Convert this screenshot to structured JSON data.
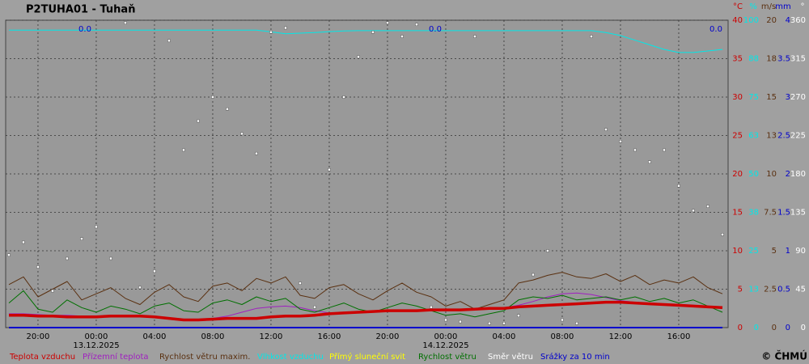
{
  "chart_data": {
    "type": "line",
    "title": "P2TUHA01 - Tuhaň",
    "copyright": "© ČHMÚ",
    "xlim": [
      -6.22,
      43.39
    ],
    "xticks": [
      {
        "value": -4,
        "label": "20:00"
      },
      {
        "value": 0,
        "label": "00:00"
      },
      {
        "value": 4,
        "label": "04:00"
      },
      {
        "value": 8,
        "label": "08:00"
      },
      {
        "value": 12,
        "label": "12:00"
      },
      {
        "value": 16,
        "label": "16:00"
      },
      {
        "value": 20,
        "label": "20:00"
      },
      {
        "value": 24,
        "label": "00:00"
      },
      {
        "value": 28,
        "label": "04:00"
      },
      {
        "value": 32,
        "label": "08:00"
      },
      {
        "value": 36,
        "label": "12:00"
      },
      {
        "value": 40,
        "label": "16:00"
      }
    ],
    "dates": [
      {
        "value": 0,
        "label": "13.12.2025"
      },
      {
        "value": 24,
        "label": "14.12.2025"
      }
    ],
    "grid": true,
    "axes": [
      {
        "id": "t",
        "label": "°C",
        "color": "#cc0000",
        "lim": [
          0,
          40
        ],
        "ticks": [
          0,
          5,
          10,
          15,
          20,
          25,
          30,
          35,
          40
        ]
      },
      {
        "id": "h",
        "label": "%",
        "color": "#00e8e8",
        "lim": [
          0,
          100
        ],
        "ticks": [
          0,
          {
            "value": 12.5,
            "label": "13"
          },
          25,
          {
            "value": 37.5,
            "label": "38"
          },
          50,
          {
            "value": 62.5,
            "label": "63"
          },
          75,
          {
            "value": 87.5,
            "label": "88"
          },
          100
        ]
      },
      {
        "id": "w",
        "label": "m/s",
        "color": "#5a3010",
        "lim": [
          0,
          20
        ],
        "ticks": [
          0,
          2.5,
          5,
          7.5,
          10,
          {
            "value": 12.5,
            "label": "13"
          },
          15,
          {
            "value": 17.5,
            "label": "18"
          },
          20
        ]
      },
      {
        "id": "p",
        "label": "mm",
        "color": "#0000cc",
        "lim": [
          0,
          4
        ],
        "ticks": [
          0,
          0.5,
          1,
          1.5,
          2,
          2.5,
          3,
          3.5,
          4
        ]
      },
      {
        "id": "d",
        "label": "°",
        "color": "#ffffff",
        "lim": [
          0,
          360
        ],
        "ticks": [
          0,
          45,
          90,
          135,
          180,
          225,
          270,
          315,
          360
        ]
      }
    ],
    "x": [
      -6,
      -5,
      -4,
      -3,
      -2,
      -1,
      0,
      1,
      2,
      3,
      4,
      5,
      6,
      7,
      8,
      9,
      10,
      11,
      12,
      13,
      14,
      15,
      16,
      17,
      18,
      19,
      20,
      21,
      22,
      23,
      24,
      25,
      26,
      27,
      28,
      29,
      30,
      31,
      32,
      33,
      34,
      35,
      36,
      37,
      38,
      39,
      40,
      41,
      42,
      43
    ],
    "series": [
      {
        "name": "Teplota vzduchu",
        "color": "#cc0000",
        "axis": "t",
        "width": 3.5,
        "values": [
          1.6,
          1.6,
          1.5,
          1.5,
          1.4,
          1.4,
          1.4,
          1.5,
          1.5,
          1.5,
          1.4,
          1.2,
          1.0,
          1.0,
          1.1,
          1.2,
          1.2,
          1.2,
          1.4,
          1.5,
          1.5,
          1.6,
          1.8,
          1.9,
          2.0,
          2.1,
          2.2,
          2.2,
          2.2,
          2.3,
          2.3,
          2.3,
          2.4,
          2.5,
          2.5,
          2.7,
          2.8,
          2.9,
          3.0,
          3.1,
          3.2,
          3.3,
          3.3,
          3.2,
          3.1,
          3.0,
          2.9,
          2.8,
          2.7,
          2.6
        ]
      },
      {
        "name": "Přízemní teplota",
        "color": "#a020c0",
        "axis": "t",
        "width": 1,
        "values": [
          1.8,
          1.8,
          1.7,
          1.6,
          1.6,
          1.5,
          1.5,
          1.6,
          1.6,
          1.5,
          1.4,
          1.2,
          1.1,
          1.1,
          1.2,
          1.5,
          2.0,
          2.5,
          2.7,
          2.8,
          2.6,
          2.2,
          1.9,
          1.9,
          2.0,
          2.1,
          2.1,
          2.2,
          2.2,
          2.3,
          2.3,
          2.4,
          2.5,
          2.5,
          2.6,
          2.9,
          3.4,
          4.0,
          4.4,
          4.5,
          4.3,
          3.9,
          3.5,
          3.3,
          3.2,
          3.1,
          3.0,
          2.9,
          2.8,
          2.7
        ]
      },
      {
        "name": "Rychlost větru maxim.",
        "color": "#5a3010",
        "axis": "w",
        "width": 1,
        "values": [
          2.8,
          3.3,
          2.0,
          2.5,
          3.0,
          1.8,
          2.2,
          2.6,
          1.9,
          1.5,
          2.3,
          2.8,
          2.0,
          1.7,
          2.7,
          2.9,
          2.4,
          3.2,
          2.9,
          3.3,
          2.1,
          1.9,
          2.6,
          2.8,
          2.2,
          1.8,
          2.4,
          2.9,
          2.3,
          2.0,
          1.4,
          1.7,
          1.2,
          1.5,
          1.8,
          2.9,
          3.1,
          3.4,
          3.6,
          3.3,
          3.2,
          3.5,
          3.0,
          3.4,
          2.8,
          3.1,
          2.9,
          3.3,
          2.6,
          2.2
        ]
      },
      {
        "name": "Vlhkost vzduchu",
        "color": "#00e8e8",
        "axis": "h",
        "width": 1,
        "values": [
          96.8,
          96.8,
          96.8,
          96.8,
          96.8,
          96.8,
          96.8,
          96.8,
          96.8,
          96.8,
          96.8,
          96.8,
          96.8,
          96.8,
          96.8,
          96.8,
          96.8,
          96.8,
          96.2,
          95.6,
          95.8,
          96.0,
          96.3,
          96.5,
          96.6,
          96.6,
          96.6,
          96.6,
          96.6,
          96.6,
          96.6,
          96.6,
          96.6,
          96.6,
          96.6,
          96.6,
          96.6,
          96.6,
          96.6,
          96.6,
          96.6,
          96.0,
          95.0,
          93.5,
          92.0,
          90.5,
          89.5,
          89.5,
          90.0,
          90.5
        ]
      },
      {
        "name": "Přímý sluneční svit",
        "color": "#ffff00",
        "axis": "p",
        "width": 1,
        "values": [
          0,
          0,
          0,
          0,
          0,
          0,
          0,
          0,
          0,
          0,
          0,
          0,
          0,
          0,
          0,
          0,
          0,
          0,
          0,
          0,
          0,
          0,
          0,
          0,
          0,
          0,
          0,
          0,
          0,
          0,
          0,
          0,
          0,
          0,
          0,
          0,
          0,
          0,
          0,
          0,
          0,
          0,
          0,
          0,
          0,
          0,
          0,
          0,
          0,
          0
        ]
      },
      {
        "name": "Rychlost větru",
        "color": "#007000",
        "axis": "w",
        "width": 1,
        "values": [
          1.6,
          2.4,
          1.2,
          1.0,
          1.8,
          1.3,
          1.0,
          1.4,
          1.2,
          0.9,
          1.4,
          1.6,
          1.1,
          1.0,
          1.6,
          1.8,
          1.5,
          2.0,
          1.7,
          1.9,
          1.2,
          1.0,
          1.3,
          1.6,
          1.2,
          1.0,
          1.3,
          1.6,
          1.4,
          1.1,
          0.8,
          0.9,
          0.7,
          0.9,
          1.1,
          1.8,
          2.0,
          1.9,
          2.1,
          1.8,
          1.9,
          2.0,
          1.8,
          2.0,
          1.7,
          1.9,
          1.6,
          1.8,
          1.4,
          1.0
        ]
      },
      {
        "name": "Směr větru",
        "color": "#ffffff",
        "axis": "d",
        "marker": "dots",
        "values": [
          85,
          100,
          71,
          43,
          81,
          104,
          118,
          81,
          357,
          47,
          66,
          336,
          208,
          242,
          270,
          256,
          227,
          204,
          346,
          351,
          52,
          24,
          185,
          270,
          317,
          346,
          357,
          341,
          355,
          24,
          9,
          7,
          341,
          5,
          5,
          14,
          62,
          90,
          9,
          5,
          341,
          232,
          218,
          208,
          194,
          208,
          166,
          137,
          142,
          109
        ]
      },
      {
        "name": "Srážky za 10 min",
        "color": "#0000cc",
        "axis": "p",
        "width": 2,
        "values": [
          0,
          0,
          0,
          0,
          0,
          0,
          0,
          0,
          0,
          0,
          0,
          0,
          0,
          0,
          0,
          0,
          0,
          0,
          0,
          0,
          0,
          0,
          0,
          0,
          0,
          0,
          0,
          0,
          0,
          0,
          0,
          0,
          0,
          0,
          0,
          0,
          0,
          0,
          0,
          0,
          0,
          0,
          0,
          0,
          0,
          0,
          0,
          0,
          0,
          0
        ]
      }
    ],
    "annotations": [
      "0.0",
      "0.0",
      "0.0"
    ]
  }
}
